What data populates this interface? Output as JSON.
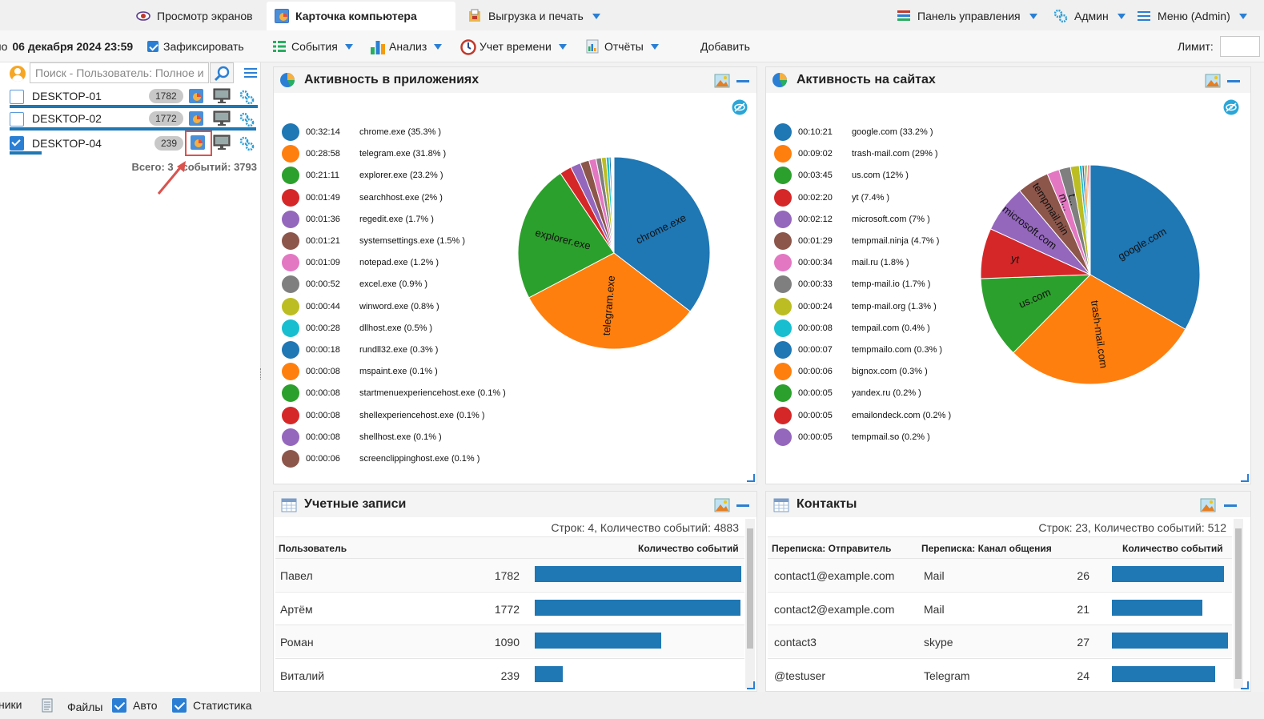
{
  "top_tabs": [
    {
      "label": "Просмотр экранов",
      "icon": "eye-icon",
      "active": false
    },
    {
      "label": "Карточка компьютера",
      "icon": "computer-card-icon",
      "active": true
    },
    {
      "label": "Выгрузка и печать",
      "icon": "export-print-icon",
      "active": false
    }
  ],
  "top_right": {
    "control_panel": "Панель управления",
    "admin": "Админ",
    "menu": "Меню (Admin)"
  },
  "toolbar": {
    "date_prefix": "по",
    "date": "06 декабря 2024 23:59",
    "fix_label": "Зафиксировать",
    "events": "События",
    "analysis": "Анализ",
    "time_tracking": "Учет времени",
    "reports": "Отчёты",
    "add": "Добавить",
    "limit_label": "Лимит:"
  },
  "sidebar": {
    "search_placeholder": "Поиск - Пользователь: Полное и",
    "devices": [
      {
        "name": "DESKTOP-01",
        "count": "1782",
        "checked": false,
        "bar": 1.0
      },
      {
        "name": "DESKTOP-02",
        "count": "1772",
        "checked": false,
        "bar": 0.994
      },
      {
        "name": "DESKTOP-04",
        "count": "239",
        "checked": true,
        "bar": 0.134
      }
    ],
    "total_text": "Всего: 3 , событий: 3793"
  },
  "apps_panel": {
    "title": "Активность в приложениях",
    "items": [
      {
        "time": "00:32:14",
        "label": "chrome.exe (35.3% )",
        "pct": 35.3,
        "color": "#1f77b4",
        "slice_label": "chrome.exe"
      },
      {
        "time": "00:28:58",
        "label": "telegram.exe (31.8% )",
        "pct": 31.8,
        "color": "#ff7f0e",
        "slice_label": "telegram.exe"
      },
      {
        "time": "00:21:11",
        "label": "explorer.exe (23.2% )",
        "pct": 23.2,
        "color": "#2ca02c",
        "slice_label": "explorer.exe"
      },
      {
        "time": "00:01:49",
        "label": "searchhost.exe (2% )",
        "pct": 2.0,
        "color": "#d62728",
        "slice_label": ""
      },
      {
        "time": "00:01:36",
        "label": "regedit.exe (1.7% )",
        "pct": 1.7,
        "color": "#9467bd",
        "slice_label": ""
      },
      {
        "time": "00:01:21",
        "label": "systemsettings.exe (1.5% )",
        "pct": 1.5,
        "color": "#8c564b",
        "slice_label": ""
      },
      {
        "time": "00:01:09",
        "label": "notepad.exe (1.2% )",
        "pct": 1.2,
        "color": "#e377c2",
        "slice_label": ""
      },
      {
        "time": "00:00:52",
        "label": "excel.exe (0.9% )",
        "pct": 0.9,
        "color": "#7f7f7f",
        "slice_label": ""
      },
      {
        "time": "00:00:44",
        "label": "winword.exe (0.8% )",
        "pct": 0.8,
        "color": "#bcbd22",
        "slice_label": ""
      },
      {
        "time": "00:00:28",
        "label": "dllhost.exe (0.5% )",
        "pct": 0.5,
        "color": "#17becf",
        "slice_label": ""
      },
      {
        "time": "00:00:18",
        "label": "rundll32.exe (0.3% )",
        "pct": 0.3,
        "color": "#1f77b4",
        "slice_label": ""
      },
      {
        "time": "00:00:08",
        "label": "mspaint.exe (0.1% )",
        "pct": 0.1,
        "color": "#ff7f0e",
        "slice_label": ""
      },
      {
        "time": "00:00:08",
        "label": "startmenuexperiencehost.exe (0.1% )",
        "pct": 0.1,
        "color": "#2ca02c",
        "slice_label": ""
      },
      {
        "time": "00:00:08",
        "label": "shellexperiencehost.exe (0.1% )",
        "pct": 0.1,
        "color": "#d62728",
        "slice_label": ""
      },
      {
        "time": "00:00:08",
        "label": "shellhost.exe (0.1% )",
        "pct": 0.1,
        "color": "#9467bd",
        "slice_label": ""
      },
      {
        "time": "00:00:06",
        "label": "screenclippinghost.exe (0.1% )",
        "pct": 0.1,
        "color": "#8c564b",
        "slice_label": ""
      }
    ]
  },
  "sites_panel": {
    "title": "Активность на сайтах",
    "items": [
      {
        "time": "00:10:21",
        "label": "google.com (33.2% )",
        "pct": 33.2,
        "color": "#1f77b4",
        "slice_label": "google.com"
      },
      {
        "time": "00:09:02",
        "label": "trash-mail.com (29% )",
        "pct": 29.0,
        "color": "#ff7f0e",
        "slice_label": "trash-mail.com"
      },
      {
        "time": "00:03:45",
        "label": "us.com (12% )",
        "pct": 12.0,
        "color": "#2ca02c",
        "slice_label": "us.com"
      },
      {
        "time": "00:02:20",
        "label": "yt (7.4% )",
        "pct": 7.4,
        "color": "#d62728",
        "slice_label": "yt"
      },
      {
        "time": "00:02:12",
        "label": "microsoft.com (7% )",
        "pct": 7.0,
        "color": "#9467bd",
        "slice_label": "microsoft.com"
      },
      {
        "time": "00:01:29",
        "label": "tempmail.ninja (4.7% )",
        "pct": 4.7,
        "color": "#8c564b",
        "slice_label": "tempmail.nin"
      },
      {
        "time": "00:00:34",
        "label": "mail.ru (1.8% )",
        "pct": 1.8,
        "color": "#e377c2",
        "slice_label": "m..."
      },
      {
        "time": "00:00:33",
        "label": "temp-mail.io (1.7% )",
        "pct": 1.7,
        "color": "#7f7f7f",
        "slice_label": "t..."
      },
      {
        "time": "00:00:24",
        "label": "temp-mail.org (1.3% )",
        "pct": 1.3,
        "color": "#bcbd22",
        "slice_label": ""
      },
      {
        "time": "00:00:08",
        "label": "tempail.com (0.4% )",
        "pct": 0.4,
        "color": "#17becf",
        "slice_label": ""
      },
      {
        "time": "00:00:07",
        "label": "tempmailo.com (0.3% )",
        "pct": 0.3,
        "color": "#1f77b4",
        "slice_label": ""
      },
      {
        "time": "00:00:06",
        "label": "bignox.com (0.3% )",
        "pct": 0.3,
        "color": "#ff7f0e",
        "slice_label": ""
      },
      {
        "time": "00:00:05",
        "label": "yandex.ru (0.2% )",
        "pct": 0.2,
        "color": "#2ca02c",
        "slice_label": ""
      },
      {
        "time": "00:00:05",
        "label": "emailondeck.com (0.2% )",
        "pct": 0.2,
        "color": "#d62728",
        "slice_label": ""
      },
      {
        "time": "00:00:05",
        "label": "tempmail.so (0.2% )",
        "pct": 0.2,
        "color": "#9467bd",
        "slice_label": ""
      }
    ]
  },
  "accounts_panel": {
    "title": "Учетные записи",
    "stats": "Строк: 4, Количество событий: 4883",
    "col_user": "Пользователь",
    "col_count": "Количество событий",
    "rows": [
      {
        "user": "Павел",
        "count": "1782",
        "value": 1782
      },
      {
        "user": "Артём",
        "count": "1772",
        "value": 1772
      },
      {
        "user": "Роман",
        "count": "1090",
        "value": 1090
      },
      {
        "user": "Виталий",
        "count": "239",
        "value": 239
      }
    ]
  },
  "contacts_panel": {
    "title": "Контакты",
    "stats": "Строк: 23, Количество событий: 512",
    "col_sender": "Переписка: Отправитель",
    "col_channel": "Переписка: Канал общения",
    "col_count": "Количество событий",
    "rows": [
      {
        "sender": "contact1@example.com",
        "channel": "Mail",
        "count": "26",
        "value": 26
      },
      {
        "sender": "contact2@example.com",
        "channel": "Mail",
        "count": "21",
        "value": 21
      },
      {
        "sender": "contact3",
        "channel": "skype",
        "count": "27",
        "value": 27
      },
      {
        "sender": "@testuser",
        "channel": "Telegram",
        "count": "24",
        "value": 24
      }
    ]
  },
  "bottom_bar": {
    "left_cut": "ники",
    "files": "Файлы",
    "auto": "Авто",
    "stats": "Статистика"
  },
  "chart_data": [
    {
      "type": "pie",
      "title": "Активность в приложениях",
      "categories": [
        "chrome.exe",
        "telegram.exe",
        "explorer.exe",
        "searchhost.exe",
        "regedit.exe",
        "systemsettings.exe",
        "notepad.exe",
        "excel.exe",
        "winword.exe",
        "dllhost.exe",
        "rundll32.exe",
        "mspaint.exe",
        "startmenuexperiencehost.exe",
        "shellexperiencehost.exe",
        "shellhost.exe",
        "screenclippinghost.exe"
      ],
      "values": [
        35.3,
        31.8,
        23.2,
        2.0,
        1.7,
        1.5,
        1.2,
        0.9,
        0.8,
        0.5,
        0.3,
        0.1,
        0.1,
        0.1,
        0.1,
        0.1
      ]
    },
    {
      "type": "pie",
      "title": "Активность на сайтах",
      "categories": [
        "google.com",
        "trash-mail.com",
        "us.com",
        "yt",
        "microsoft.com",
        "tempmail.ninja",
        "mail.ru",
        "temp-mail.io",
        "temp-mail.org",
        "tempail.com",
        "tempmailo.com",
        "bignox.com",
        "yandex.ru",
        "emailondeck.com",
        "tempmail.so"
      ],
      "values": [
        33.2,
        29.0,
        12.0,
        7.4,
        7.0,
        4.7,
        1.8,
        1.7,
        1.3,
        0.4,
        0.3,
        0.3,
        0.2,
        0.2,
        0.2
      ]
    },
    {
      "type": "bar",
      "title": "Учетные записи",
      "categories": [
        "Павел",
        "Артём",
        "Роман",
        "Виталий"
      ],
      "values": [
        1782,
        1772,
        1090,
        239
      ]
    },
    {
      "type": "bar",
      "title": "Контакты",
      "categories": [
        "contact1@example.com",
        "contact2@example.com",
        "contact3",
        "@testuser"
      ],
      "values": [
        26,
        21,
        27,
        24
      ]
    }
  ]
}
